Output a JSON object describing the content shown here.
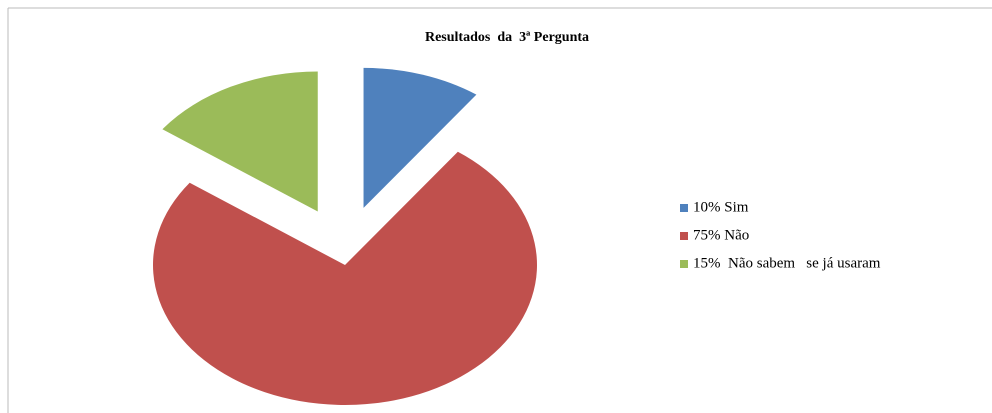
{
  "chart_data": {
    "type": "pie",
    "title": "Resultados  da  3ª Pergunta",
    "categories": [
      "10% Sim",
      "75% Não",
      "15%  Não sabem   se já usaram"
    ],
    "values": [
      10,
      75,
      15
    ],
    "colors": [
      "#4f81bd",
      "#c0504d",
      "#9bbb59"
    ],
    "legend": "right"
  }
}
